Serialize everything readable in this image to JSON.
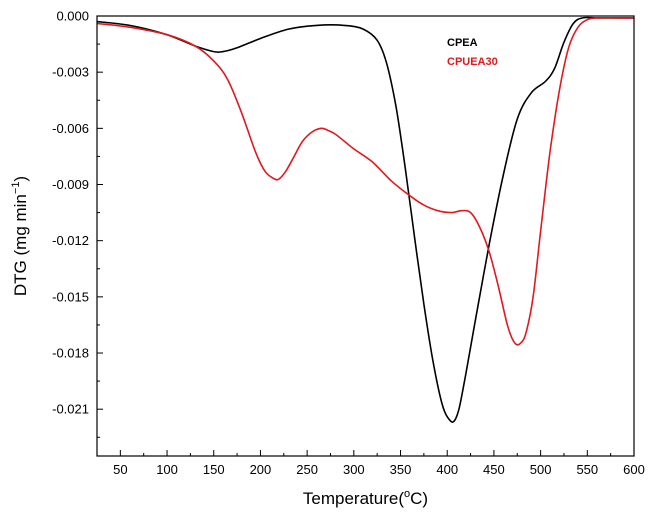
{
  "chart_data": {
    "type": "line",
    "title": "",
    "xlabel": "Temperature(°C)",
    "ylabel": "DTG (mg min−1)",
    "xlabel_parts": {
      "main": "Temperature(",
      "sup": "o",
      "unit": "C)"
    },
    "ylabel_parts": {
      "main": "DTG (mg min",
      "sup": "−1",
      "tail": ")"
    },
    "xlim": [
      25,
      600
    ],
    "ylim": [
      -0.0235,
      0.0
    ],
    "xticks": [
      50,
      100,
      150,
      200,
      250,
      300,
      350,
      400,
      450,
      500,
      550,
      600
    ],
    "xtick_labels": [
      "50",
      "100",
      "150",
      "200",
      "250",
      "300",
      "350",
      "400",
      "450",
      "500",
      "550",
      "600"
    ],
    "yticks": [
      0.0,
      -0.003,
      -0.006,
      -0.009,
      -0.012,
      -0.015,
      -0.018,
      -0.021
    ],
    "ytick_labels": [
      "0.000",
      "-0.003",
      "-0.006",
      "-0.009",
      "-0.012",
      "-0.015",
      "-0.018",
      "-0.021"
    ],
    "grid": false,
    "legend_position": "top-right",
    "series": [
      {
        "name": "CPEA",
        "color": "#000000",
        "x": [
          25,
          60,
          100,
          130,
          150,
          160,
          175,
          200,
          230,
          260,
          290,
          310,
          325,
          335,
          345,
          355,
          365,
          375,
          385,
          395,
          403,
          408,
          413,
          420,
          430,
          445,
          460,
          475,
          490,
          505,
          515,
          525,
          535,
          545,
          560,
          580,
          600
        ],
        "y": [
          -0.0003,
          -0.0005,
          -0.001,
          -0.0016,
          -0.0019,
          -0.0019,
          -0.0017,
          -0.0012,
          -0.0007,
          -0.0005,
          -0.0005,
          -0.0007,
          -0.0013,
          -0.0025,
          -0.0048,
          -0.0081,
          -0.0118,
          -0.0154,
          -0.0185,
          -0.0208,
          -0.0216,
          -0.0216,
          -0.0209,
          -0.0191,
          -0.0163,
          -0.0122,
          -0.0085,
          -0.0055,
          -0.0041,
          -0.0035,
          -0.0028,
          -0.0014,
          -0.0004,
          -0.0001,
          -0.0001,
          -0.0001,
          -0.0001
        ]
      },
      {
        "name": "CPUEA30",
        "color": "#e0191e",
        "x": [
          25,
          60,
          100,
          130,
          150,
          165,
          180,
          195,
          205,
          215,
          220,
          227,
          235,
          245,
          255,
          265,
          272,
          280,
          290,
          300,
          320,
          340,
          360,
          375,
          390,
          405,
          415,
          425,
          435,
          445,
          455,
          465,
          473,
          480,
          485,
          492,
          500,
          510,
          520,
          530,
          540,
          550,
          560,
          580,
          600
        ],
        "y": [
          -0.0004,
          -0.0006,
          -0.001,
          -0.0016,
          -0.0024,
          -0.0034,
          -0.0052,
          -0.0073,
          -0.0083,
          -0.0087,
          -0.0087,
          -0.0083,
          -0.0076,
          -0.0067,
          -0.0062,
          -0.006,
          -0.0061,
          -0.0063,
          -0.0067,
          -0.0071,
          -0.0078,
          -0.0088,
          -0.0096,
          -0.0101,
          -0.0104,
          -0.0105,
          -0.0104,
          -0.0105,
          -0.0113,
          -0.0126,
          -0.0145,
          -0.0166,
          -0.0175,
          -0.0174,
          -0.0168,
          -0.015,
          -0.0115,
          -0.0073,
          -0.004,
          -0.0017,
          -0.0006,
          -0.0002,
          -0.0001,
          -0.0001,
          -0.0001
        ]
      }
    ]
  }
}
